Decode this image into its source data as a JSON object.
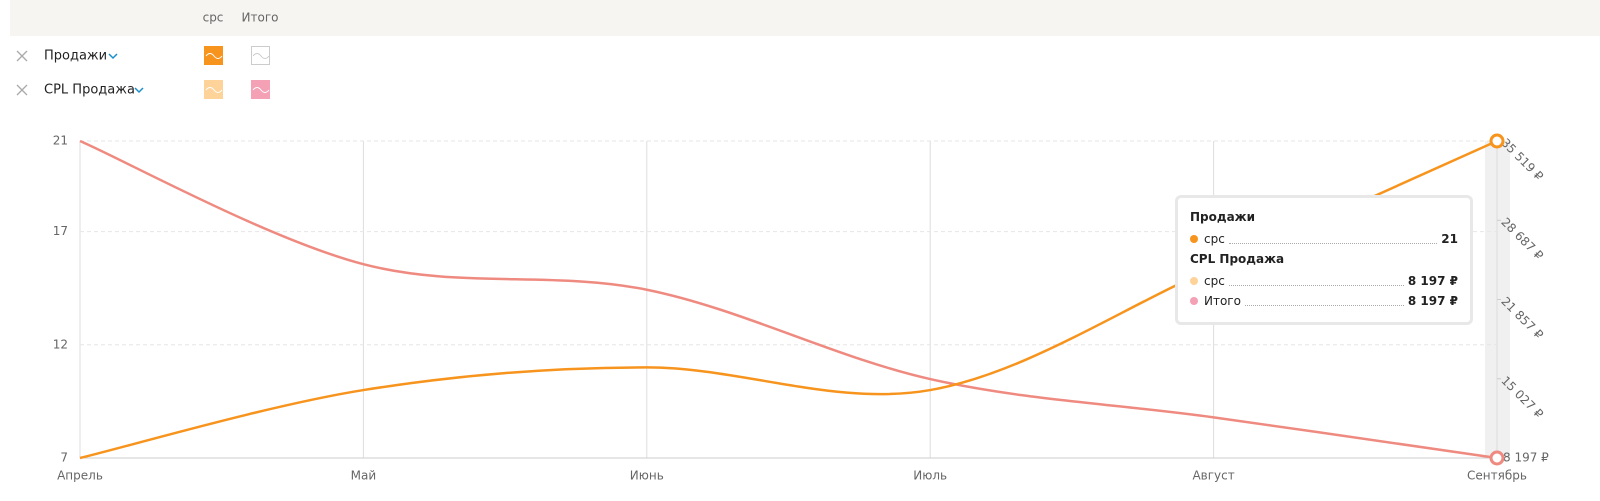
{
  "header": {
    "columns": [
      "cpc",
      "Итого"
    ]
  },
  "rows": [
    {
      "label": "Продажи"
    },
    {
      "label": "CPL Продажа"
    }
  ],
  "tooltip": {
    "groups": [
      {
        "title": "Продажи",
        "items": [
          {
            "name": "cpc",
            "value": "21"
          }
        ]
      },
      {
        "title": "CPL Продажа",
        "items": [
          {
            "name": "cpc",
            "value": "8 197 ₽"
          },
          {
            "name": "Итого",
            "value": "8 197 ₽"
          }
        ]
      }
    ]
  },
  "chart_data": {
    "type": "line",
    "categories": [
      "Апрель",
      "Май",
      "Июнь",
      "Июль",
      "Август",
      "Сентябрь"
    ],
    "series": [
      {
        "name": "cpc",
        "color": "#f7941d",
        "axis": "y",
        "values": [
          7,
          10,
          11,
          10,
          15.4,
          21
        ]
      },
      {
        "name": "Итого",
        "color": "#ef8a80",
        "axis": "y2",
        "values": [
          35519,
          24900,
          22700,
          15000,
          11700,
          8197
        ]
      }
    ],
    "ylim": [
      7,
      21
    ],
    "yticks": [
      7,
      12,
      17,
      21
    ],
    "y2lim": [
      8197,
      35519
    ],
    "y2ticks": [
      {
        "value": 8197,
        "label": "8 197 ₽"
      },
      {
        "value": 15027,
        "label": "15 027 ₽"
      },
      {
        "value": 21857,
        "label": "21 857 ₽"
      },
      {
        "value": 28687,
        "label": "28 687 ₽"
      },
      {
        "value": 35519,
        "label": "35 519 ₽"
      }
    ],
    "grid": true
  }
}
